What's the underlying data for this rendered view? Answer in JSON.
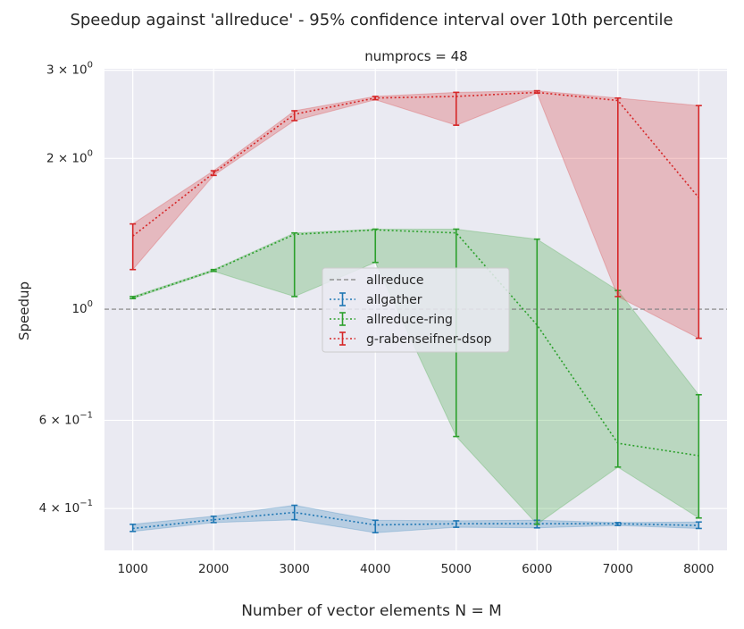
{
  "chart_data": {
    "type": "line",
    "title": "Speedup against 'allreduce' - 95% confidence interval over 10th percentile",
    "subtitle": "numprocs = 48",
    "xlabel": "Number of vector elements N = M",
    "ylabel": "Speedup",
    "yscale": "log",
    "xlim": [
      650,
      8350
    ],
    "ylim": [
      0.33,
      3.02
    ],
    "grid": true,
    "legend_position": "center",
    "x": [
      1000,
      2000,
      3000,
      4000,
      5000,
      6000,
      7000,
      8000
    ],
    "x_tick_labels": [
      "1000",
      "2000",
      "3000",
      "4000",
      "5000",
      "6000",
      "7000",
      "8000"
    ],
    "y_ticks": [
      {
        "value": 3.0,
        "base": "3",
        "sep": " × ",
        "mantissa": "10",
        "exp": "0"
      },
      {
        "value": 2.0,
        "base": "2",
        "sep": " × ",
        "mantissa": "10",
        "exp": "0"
      },
      {
        "value": 1.0,
        "base": "",
        "sep": "",
        "mantissa": "10",
        "exp": "0"
      },
      {
        "value": 0.6,
        "base": "6",
        "sep": " × ",
        "mantissa": "10",
        "exp": "−1"
      },
      {
        "value": 0.4,
        "base": "4",
        "sep": " × ",
        "mantissa": "10",
        "exp": "−1"
      }
    ],
    "baseline": {
      "name": "allreduce",
      "value": 1.0,
      "color": "#808080"
    },
    "series": [
      {
        "name": "allgather",
        "color": "#1f77b4",
        "values": [
          0.365,
          0.38,
          0.393,
          0.371,
          0.373,
          0.373,
          0.373,
          0.37
        ],
        "ci_low": [
          0.36,
          0.375,
          0.38,
          0.358,
          0.367,
          0.366,
          0.37,
          0.365
        ],
        "ci_high": [
          0.372,
          0.386,
          0.406,
          0.379,
          0.378,
          0.379,
          0.375,
          0.376
        ]
      },
      {
        "name": "allreduce-ring",
        "color": "#2ca02c",
        "values": [
          1.055,
          1.195,
          1.41,
          1.44,
          1.42,
          0.93,
          0.54,
          0.51
        ],
        "ci_low": [
          1.05,
          1.19,
          1.06,
          1.24,
          0.557,
          0.372,
          0.484,
          0.383
        ],
        "ci_high": [
          1.06,
          1.2,
          1.42,
          1.445,
          1.445,
          1.38,
          1.09,
          0.675
        ]
      },
      {
        "name": "g-rabenseifner-dsop",
        "color": "#d62728",
        "values": [
          1.4,
          1.87,
          2.45,
          2.64,
          2.66,
          2.71,
          2.61,
          1.67
        ],
        "ci_low": [
          1.2,
          1.85,
          2.38,
          2.62,
          2.33,
          2.7,
          1.06,
          0.875
        ],
        "ci_high": [
          1.48,
          1.89,
          2.49,
          2.66,
          2.71,
          2.73,
          2.64,
          2.55
        ]
      }
    ]
  }
}
